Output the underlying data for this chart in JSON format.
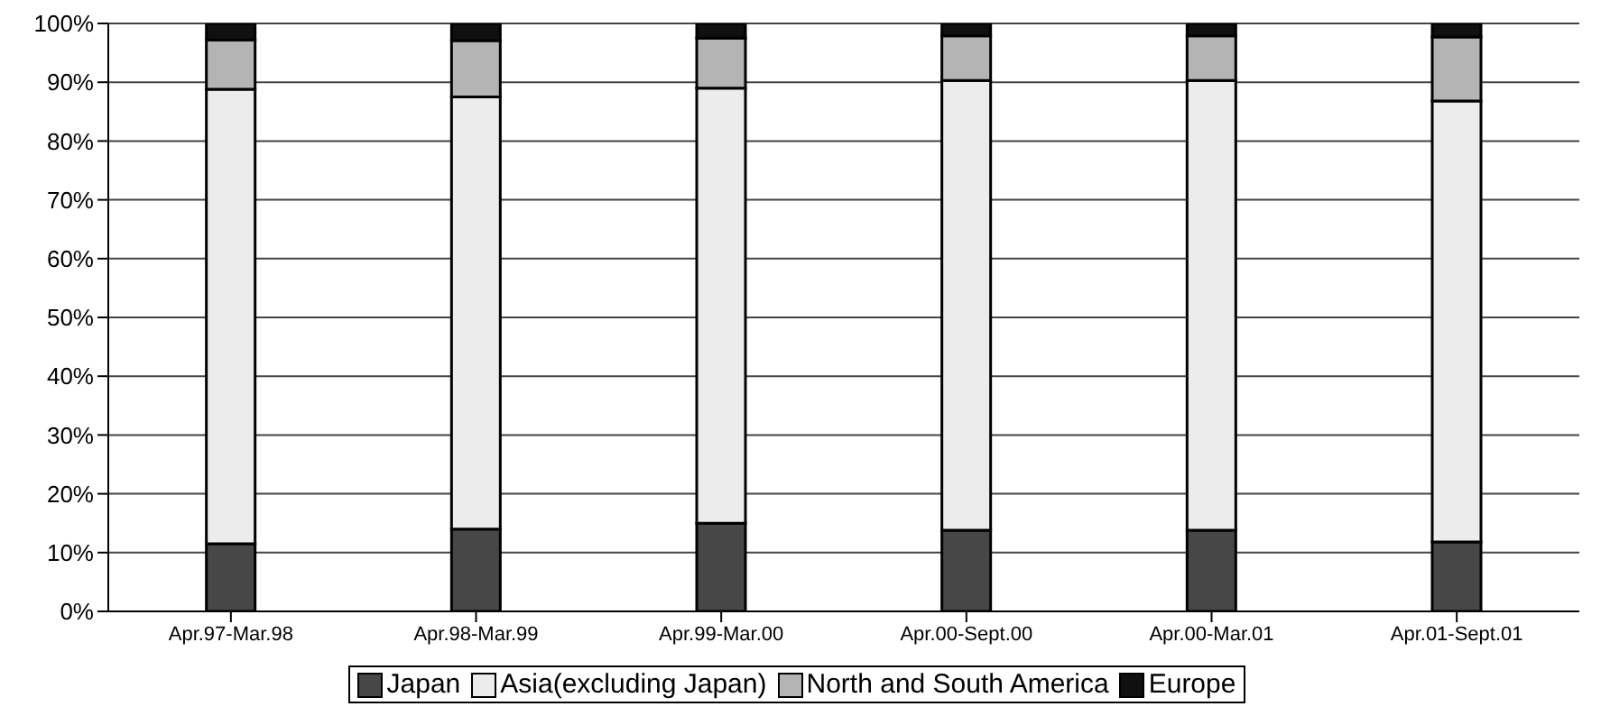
{
  "chart_data": {
    "type": "bar",
    "stacked": true,
    "categories": [
      "Apr.97-Mar.98",
      "Apr.98-Mar.99",
      "Apr.99-Mar.00",
      "Apr.00-Sept.00",
      "Apr.00-Mar.01",
      "Apr.01-Sept.01"
    ],
    "series": [
      {
        "name": "Japan",
        "color": "#474747",
        "values": [
          11.5,
          14,
          15,
          13.8,
          13.8,
          11.8
        ]
      },
      {
        "name": "Asia(excluding Japan)",
        "color": "#ececec",
        "values": [
          77.3,
          73.5,
          74,
          76.5,
          76.5,
          75
        ]
      },
      {
        "name": "North and South America",
        "color": "#b4b4b4",
        "values": [
          8.4,
          9.6,
          8.5,
          7.6,
          7.6,
          10.9
        ]
      },
      {
        "name": "Europe",
        "color": "#101010",
        "values": [
          2.8,
          2.9,
          2.5,
          2.1,
          2.1,
          2.3
        ]
      }
    ],
    "ylim": [
      0,
      100
    ],
    "yticks": [
      {
        "value": 0,
        "label": "0%"
      },
      {
        "value": 10,
        "label": "10%"
      },
      {
        "value": 20,
        "label": "20%"
      },
      {
        "value": 30,
        "label": "30%"
      },
      {
        "value": 40,
        "label": "40%"
      },
      {
        "value": 50,
        "label": "50%"
      },
      {
        "value": 60,
        "label": "60%"
      },
      {
        "value": 70,
        "label": "70%"
      },
      {
        "value": 80,
        "label": "80%"
      },
      {
        "value": 90,
        "label": "90%"
      },
      {
        "value": 100,
        "label": "100%"
      }
    ],
    "grid": "y",
    "legend": "bottom"
  }
}
